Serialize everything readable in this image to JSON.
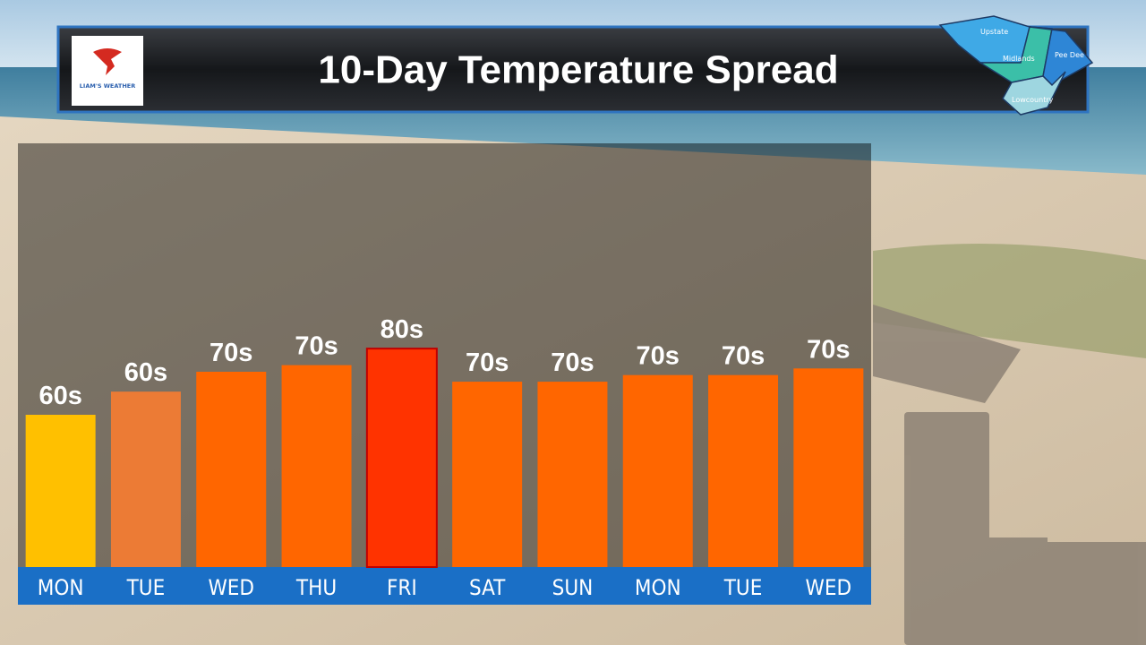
{
  "chart_data": {
    "type": "bar",
    "title": "10-Day Temperature Spread",
    "categories": [
      "MON",
      "TUE",
      "WED",
      "THU",
      "FRI",
      "SAT",
      "SUN",
      "MON",
      "TUE",
      "WED"
    ],
    "values": [
      61,
      68,
      74,
      76,
      81,
      71,
      71,
      73,
      73,
      75
    ],
    "value_labels": [
      "60s",
      "60s",
      "70s",
      "70s",
      "80s",
      "70s",
      "70s",
      "70s",
      "70s",
      "70s"
    ],
    "colors": [
      "#ffc000",
      "#ec7b35",
      "#ff6600",
      "#ff6600",
      "#ff3300",
      "#ff6600",
      "#ff6600",
      "#ff6600",
      "#ff6600",
      "#ff6600"
    ],
    "ylim": [
      15,
      143
    ]
  },
  "logo_text": "LIAM'S WEATHER",
  "map_regions": [
    "Upstate",
    "Midlands",
    "Pee Dee",
    "Lowcountry"
  ]
}
